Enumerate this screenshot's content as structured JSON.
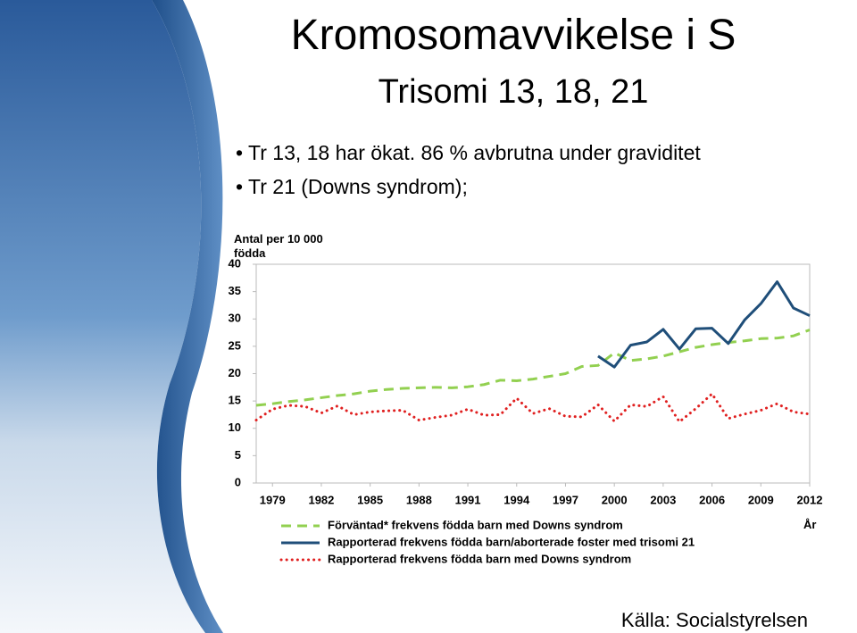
{
  "slide": {
    "title": "Kromosomavvikelse i S",
    "subtitle": "Trisomi 13, 18, 21",
    "bullets": [
      "Tr 13, 18 har ökat. 86 % avbrutna under graviditet",
      "Tr 21 (Downs syndrom);"
    ],
    "source": "Källa: Socialstyrelsen"
  },
  "chart_data": {
    "type": "line",
    "ylabel": "Antal per 10 000 födda",
    "xlabel": "År",
    "x": [
      1978,
      1979,
      1980,
      1981,
      1982,
      1983,
      1984,
      1985,
      1986,
      1987,
      1988,
      1989,
      1990,
      1991,
      1992,
      1993,
      1994,
      1995,
      1996,
      1997,
      1998,
      1999,
      2000,
      2001,
      2002,
      2003,
      2004,
      2005,
      2006,
      2007,
      2008,
      2009,
      2010,
      2011,
      2012
    ],
    "xlim": [
      1978,
      2012
    ],
    "xticks": [
      1979,
      1982,
      1985,
      1988,
      1991,
      1994,
      1997,
      2000,
      2003,
      2006,
      2009,
      2012
    ],
    "ylim": [
      0,
      40
    ],
    "yticks": [
      0,
      5,
      10,
      15,
      20,
      25,
      30,
      35,
      40
    ],
    "grid": false,
    "series": [
      {
        "name": "Förväntad* frekvens födda barn med Downs syndrom",
        "color": "#92d050",
        "style": "dashed",
        "values": [
          14.2,
          14.5,
          14.9,
          15.2,
          15.6,
          16.0,
          16.3,
          16.8,
          17.1,
          17.3,
          17.4,
          17.5,
          17.4,
          17.6,
          18.0,
          18.8,
          18.7,
          19.0,
          19.5,
          20.0,
          21.3,
          21.5,
          23.8,
          22.4,
          22.7,
          23.2,
          24.0,
          24.8,
          25.3,
          25.7,
          26.0,
          26.4,
          26.5,
          26.9,
          28.0
        ]
      },
      {
        "name": "Rapporterad frekvens födda barn/aborterade foster med trisomi 21",
        "color": "#1f4e79",
        "style": "solid",
        "values": [
          null,
          null,
          null,
          null,
          null,
          null,
          null,
          null,
          null,
          null,
          null,
          null,
          null,
          null,
          null,
          null,
          null,
          null,
          null,
          null,
          null,
          23.2,
          21.2,
          25.2,
          25.8,
          28.1,
          24.5,
          28.2,
          28.3,
          25.5,
          29.8,
          32.8,
          36.8,
          32.0,
          30.6
        ]
      },
      {
        "name": "Rapporterad frekvens födda barn med Downs syndrom",
        "color": "#e02020",
        "style": "dotted",
        "values": [
          11.5,
          13.5,
          14.2,
          14.0,
          12.8,
          14.1,
          12.5,
          13.0,
          13.2,
          13.3,
          11.5,
          12.0,
          12.4,
          13.5,
          12.4,
          12.5,
          15.5,
          12.7,
          13.6,
          12.2,
          12.1,
          14.3,
          11.3,
          14.3,
          14.0,
          15.8,
          11.2,
          13.6,
          16.3,
          11.8,
          12.6,
          13.3,
          14.5,
          13.0,
          12.6
        ]
      }
    ]
  }
}
